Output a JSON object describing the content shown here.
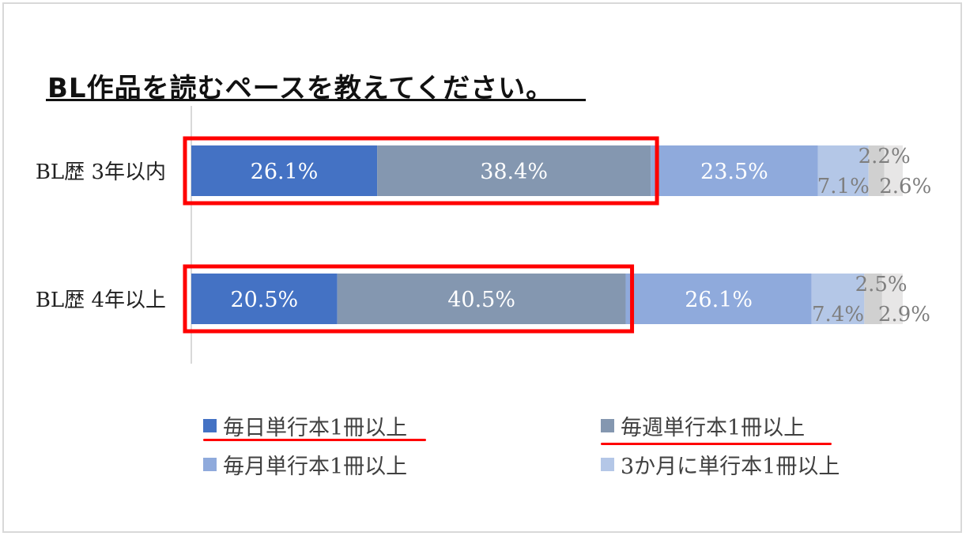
{
  "title": "BL作品を読むペースを教えてください。",
  "chart_data": {
    "type": "bar",
    "orientation": "horizontal",
    "stacked": true,
    "percent_stacked": true,
    "categories": [
      "BL歴 3年以内",
      "BL歴 4年以上"
    ],
    "series": [
      {
        "name": "毎日単行本1冊以上",
        "color": "#4472c4",
        "values": [
          26.1,
          20.5
        ],
        "labels": [
          "26.1%",
          "20.5%"
        ]
      },
      {
        "name": "毎週単行本1冊以上",
        "color": "#8497b0",
        "values": [
          38.4,
          40.5
        ],
        "labels": [
          "38.4%",
          "40.5%"
        ]
      },
      {
        "name": "毎月単行本1冊以上",
        "color": "#8faadc",
        "values": [
          23.5,
          26.1
        ],
        "labels": [
          "23.5%",
          "26.1%"
        ]
      },
      {
        "name": "3か月に単行本1冊以上",
        "color": "#b4c7e7",
        "values": [
          7.1,
          7.4
        ],
        "labels": [
          "7.1%",
          "7.4%"
        ]
      },
      {
        "name": "",
        "color": "#d0d0d0",
        "values": [
          2.2,
          2.5
        ],
        "labels": [
          "2.2%",
          "2.5%"
        ]
      },
      {
        "name": "",
        "color": "#e7e6e6",
        "values": [
          2.6,
          2.9
        ],
        "labels": [
          "2.6%",
          "2.9%"
        ]
      }
    ],
    "legend": {
      "placement": "bottom",
      "items": [
        "毎日単行本1冊以上",
        "毎週単行本1冊以上",
        "毎月単行本1冊以上",
        "3か月に単行本1冊以上"
      ],
      "colors": [
        "#4472c4",
        "#8497b0",
        "#8faadc",
        "#b4c7e7"
      ],
      "underlined": [
        "毎日単行本1冊以上",
        "毎週単行本1冊以上"
      ]
    },
    "highlight": {
      "series": [
        "毎日単行本1冊以上",
        "毎週単行本1冊以上"
      ],
      "color": "#ff0000"
    },
    "grid": false,
    "xlabel": "",
    "ylabel": ""
  }
}
